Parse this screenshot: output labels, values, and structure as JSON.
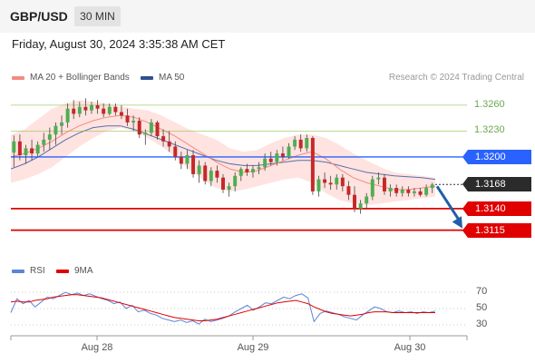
{
  "header": {
    "symbol": "GBP/USD",
    "timeframe": "30 MIN"
  },
  "datetime": "Friday, August 30, 2024 3:35:38 AM CET",
  "legend": {
    "ma20_label": "MA 20 + Bollinger Bands",
    "ma50_label": "MA 50",
    "credit": "Research © 2024 Trading Central"
  },
  "rsi_legend": {
    "rsi_label": "RSI",
    "ma9_label": "9MA"
  },
  "colors": {
    "ma20": "#f28b82",
    "ma50": "#5b6fa8",
    "band": "#ffd9d6",
    "resistance": "#2962ff",
    "support": "#e00000",
    "target": "#8bc34a",
    "bull": "#4caf50",
    "bear": "#c62828",
    "arrow": "#1f5fa8",
    "rsi": "#5c85d6",
    "rsi_ma": "#e00000"
  },
  "chart_data": [
    {
      "type": "candlestick",
      "title": "GBP/USD 30 MIN",
      "x_ticks": [
        "Aug 28",
        "Aug 29",
        "Aug 30"
      ],
      "ylim": [
        1.3082,
        1.3282
      ],
      "levels": [
        {
          "value": 1.326,
          "label": "1.3260",
          "kind": "target"
        },
        {
          "value": 1.323,
          "label": "1.3230",
          "kind": "target"
        },
        {
          "value": 1.32,
          "label": "1.3200",
          "kind": "resistance"
        },
        {
          "value": 1.3168,
          "label": "1.3168",
          "kind": "last"
        },
        {
          "value": 1.314,
          "label": "1.3140",
          "kind": "support"
        },
        {
          "value": 1.3115,
          "label": "1.3115",
          "kind": "support"
        }
      ],
      "candles": [
        [
          1.3205,
          1.3225,
          1.3188,
          1.3218
        ],
        [
          1.3218,
          1.3226,
          1.3196,
          1.3202
        ],
        [
          1.3202,
          1.3214,
          1.3192,
          1.321
        ],
        [
          1.321,
          1.322,
          1.3196,
          1.3204
        ],
        [
          1.3204,
          1.3218,
          1.32,
          1.3214
        ],
        [
          1.3214,
          1.3228,
          1.3206,
          1.322
        ],
        [
          1.322,
          1.3234,
          1.3208,
          1.3226
        ],
        [
          1.3226,
          1.324,
          1.3214,
          1.3236
        ],
        [
          1.3236,
          1.3248,
          1.3226,
          1.324
        ],
        [
          1.324,
          1.3262,
          1.3234,
          1.3256
        ],
        [
          1.3256,
          1.3266,
          1.3244,
          1.325
        ],
        [
          1.325,
          1.3264,
          1.3246,
          1.3258
        ],
        [
          1.3258,
          1.3268,
          1.3248,
          1.3254
        ],
        [
          1.3254,
          1.3264,
          1.325,
          1.326
        ],
        [
          1.326,
          1.3266,
          1.325,
          1.3256
        ],
        [
          1.3256,
          1.3262,
          1.3246,
          1.325
        ],
        [
          1.325,
          1.3262,
          1.3248,
          1.3258
        ],
        [
          1.3258,
          1.3262,
          1.3248,
          1.3252
        ],
        [
          1.3252,
          1.326,
          1.3244,
          1.3248
        ],
        [
          1.3248,
          1.3256,
          1.3236,
          1.324
        ],
        [
          1.324,
          1.3248,
          1.323,
          1.3242
        ],
        [
          1.3242,
          1.3246,
          1.3222,
          1.3226
        ],
        [
          1.3226,
          1.3232,
          1.3214,
          1.3228
        ],
        [
          1.3228,
          1.3244,
          1.3224,
          1.324
        ],
        [
          1.324,
          1.3242,
          1.322,
          1.3224
        ],
        [
          1.3224,
          1.3232,
          1.3212,
          1.3218
        ],
        [
          1.3218,
          1.323,
          1.3206,
          1.3212
        ],
        [
          1.3212,
          1.3218,
          1.3196,
          1.32
        ],
        [
          1.32,
          1.3206,
          1.3186,
          1.3192
        ],
        [
          1.3192,
          1.3208,
          1.3186,
          1.3202
        ],
        [
          1.3202,
          1.3208,
          1.3176,
          1.318
        ],
        [
          1.318,
          1.3196,
          1.317,
          1.319
        ],
        [
          1.319,
          1.3194,
          1.3168,
          1.3172
        ],
        [
          1.3172,
          1.3188,
          1.3166,
          1.3184
        ],
        [
          1.3184,
          1.319,
          1.317,
          1.3176
        ],
        [
          1.3176,
          1.318,
          1.3158,
          1.3162
        ],
        [
          1.3162,
          1.317,
          1.3154,
          1.3166
        ],
        [
          1.3166,
          1.3182,
          1.316,
          1.3178
        ],
        [
          1.3178,
          1.3188,
          1.3172,
          1.3186
        ],
        [
          1.3186,
          1.3192,
          1.3178,
          1.3182
        ],
        [
          1.3182,
          1.319,
          1.3176,
          1.3186
        ],
        [
          1.3186,
          1.3194,
          1.318,
          1.3188
        ],
        [
          1.3188,
          1.3204,
          1.3184,
          1.3198
        ],
        [
          1.3198,
          1.3206,
          1.319,
          1.3194
        ],
        [
          1.3194,
          1.3208,
          1.319,
          1.3204
        ],
        [
          1.3204,
          1.3212,
          1.3196,
          1.32
        ],
        [
          1.32,
          1.3216,
          1.3198,
          1.3212
        ],
        [
          1.3212,
          1.3224,
          1.3208,
          1.322
        ],
        [
          1.322,
          1.3226,
          1.3206,
          1.321
        ],
        [
          1.321,
          1.3226,
          1.3206,
          1.3222
        ],
        [
          1.3222,
          1.3224,
          1.3156,
          1.316
        ],
        [
          1.316,
          1.3178,
          1.3154,
          1.3174
        ],
        [
          1.3174,
          1.3182,
          1.3164,
          1.317
        ],
        [
          1.317,
          1.3178,
          1.3162,
          1.3168
        ],
        [
          1.3168,
          1.318,
          1.3162,
          1.3176
        ],
        [
          1.3176,
          1.318,
          1.316,
          1.3166
        ],
        [
          1.3166,
          1.3172,
          1.315,
          1.3156
        ],
        [
          1.3156,
          1.3166,
          1.3136,
          1.314
        ],
        [
          1.314,
          1.315,
          1.3134,
          1.3146
        ],
        [
          1.3146,
          1.3158,
          1.314,
          1.3154
        ],
        [
          1.3154,
          1.3178,
          1.315,
          1.3174
        ],
        [
          1.3174,
          1.3182,
          1.3168,
          1.3176
        ],
        [
          1.3176,
          1.318,
          1.3156,
          1.316
        ],
        [
          1.316,
          1.3168,
          1.3154,
          1.3164
        ],
        [
          1.3164,
          1.3168,
          1.3154,
          1.3158
        ],
        [
          1.3158,
          1.3166,
          1.3154,
          1.3162
        ],
        [
          1.3162,
          1.3166,
          1.3154,
          1.3158
        ],
        [
          1.3158,
          1.3164,
          1.3154,
          1.316
        ],
        [
          1.316,
          1.3164,
          1.3154,
          1.3156
        ],
        [
          1.3156,
          1.3168,
          1.3154,
          1.3164
        ],
        [
          1.3164,
          1.317,
          1.3158,
          1.3168
        ]
      ],
      "ma20": [
        1.32,
        1.3204,
        1.321,
        1.3218,
        1.3228,
        1.3236,
        1.3242,
        1.3246,
        1.3248,
        1.3246,
        1.324,
        1.3232,
        1.3224,
        1.3214,
        1.3204,
        1.3194,
        1.3186,
        1.3182,
        1.3184,
        1.319,
        1.3196,
        1.3202,
        1.3206,
        1.3198,
        1.3186,
        1.3176,
        1.317,
        1.3166,
        1.3162,
        1.3162,
        1.3164,
        1.3166
      ],
      "ma50": [
        1.3186,
        1.3192,
        1.32,
        1.321,
        1.322,
        1.3228,
        1.3234,
        1.3236,
        1.3236,
        1.3232,
        1.3226,
        1.322,
        1.3214,
        1.3208,
        1.3202,
        1.3196,
        1.3192,
        1.319,
        1.319,
        1.3192,
        1.3194,
        1.3196,
        1.3196,
        1.3194,
        1.319,
        1.3186,
        1.3182,
        1.318,
        1.3178,
        1.3177,
        1.3176,
        1.3174
      ],
      "band_upper": [
        1.3226,
        1.3232,
        1.3244,
        1.3256,
        1.3262,
        1.3266,
        1.3264,
        1.3262,
        1.3258,
        1.3256,
        1.3254,
        1.3248,
        1.324,
        1.3232,
        1.3226,
        1.322,
        1.321,
        1.3206,
        1.3208,
        1.3216,
        1.3222,
        1.3226,
        1.3226,
        1.3222,
        1.3214,
        1.3204,
        1.3196,
        1.3188,
        1.3182,
        1.318,
        1.3178,
        1.3176
      ],
      "band_lower": [
        1.317,
        1.3174,
        1.318,
        1.3188,
        1.32,
        1.3212,
        1.3222,
        1.323,
        1.3234,
        1.323,
        1.3222,
        1.3212,
        1.32,
        1.3186,
        1.3174,
        1.3164,
        1.316,
        1.3162,
        1.3166,
        1.317,
        1.3174,
        1.3176,
        1.317,
        1.3158,
        1.315,
        1.3146,
        1.3144,
        1.3146,
        1.3148,
        1.315,
        1.3152,
        1.3154
      ],
      "forecast_arrow": {
        "from": 1.3168,
        "to": 1.3115
      }
    },
    {
      "type": "line",
      "title": "RSI",
      "y_ticks": [
        "70",
        "50",
        "30"
      ],
      "ylim": [
        20,
        80
      ],
      "series": [
        {
          "name": "RSI",
          "values": [
            45,
            62,
            56,
            60,
            52,
            58,
            64,
            62,
            66,
            70,
            67,
            69,
            66,
            68,
            65,
            62,
            60,
            56,
            58,
            50,
            54,
            46,
            48,
            44,
            42,
            38,
            36,
            34,
            36,
            33,
            35,
            31,
            37,
            34,
            36,
            38,
            41,
            46,
            50,
            54,
            48,
            52,
            57,
            56,
            60,
            64,
            62,
            66,
            68,
            63,
            34,
            44,
            47,
            45,
            43,
            40,
            38,
            36,
            42,
            47,
            52,
            50,
            46,
            45,
            47,
            45,
            46,
            44,
            46,
            45,
            47
          ]
        },
        {
          "name": "9MA",
          "values": [
            58,
            59,
            58,
            58,
            60,
            61,
            62,
            64,
            65,
            66,
            67,
            67,
            66,
            65,
            64,
            63,
            61,
            59,
            57,
            55,
            53,
            51,
            49,
            47,
            45,
            43,
            41,
            39,
            38,
            37,
            36,
            35,
            35,
            36,
            37,
            39,
            41,
            43,
            45,
            47,
            49,
            51,
            53,
            55,
            57,
            58,
            59,
            60,
            58,
            56,
            52,
            49,
            46,
            44,
            43,
            42,
            41,
            42,
            43,
            45,
            46,
            46,
            46,
            45,
            45,
            45,
            45,
            45,
            45,
            45,
            45
          ]
        }
      ]
    }
  ]
}
